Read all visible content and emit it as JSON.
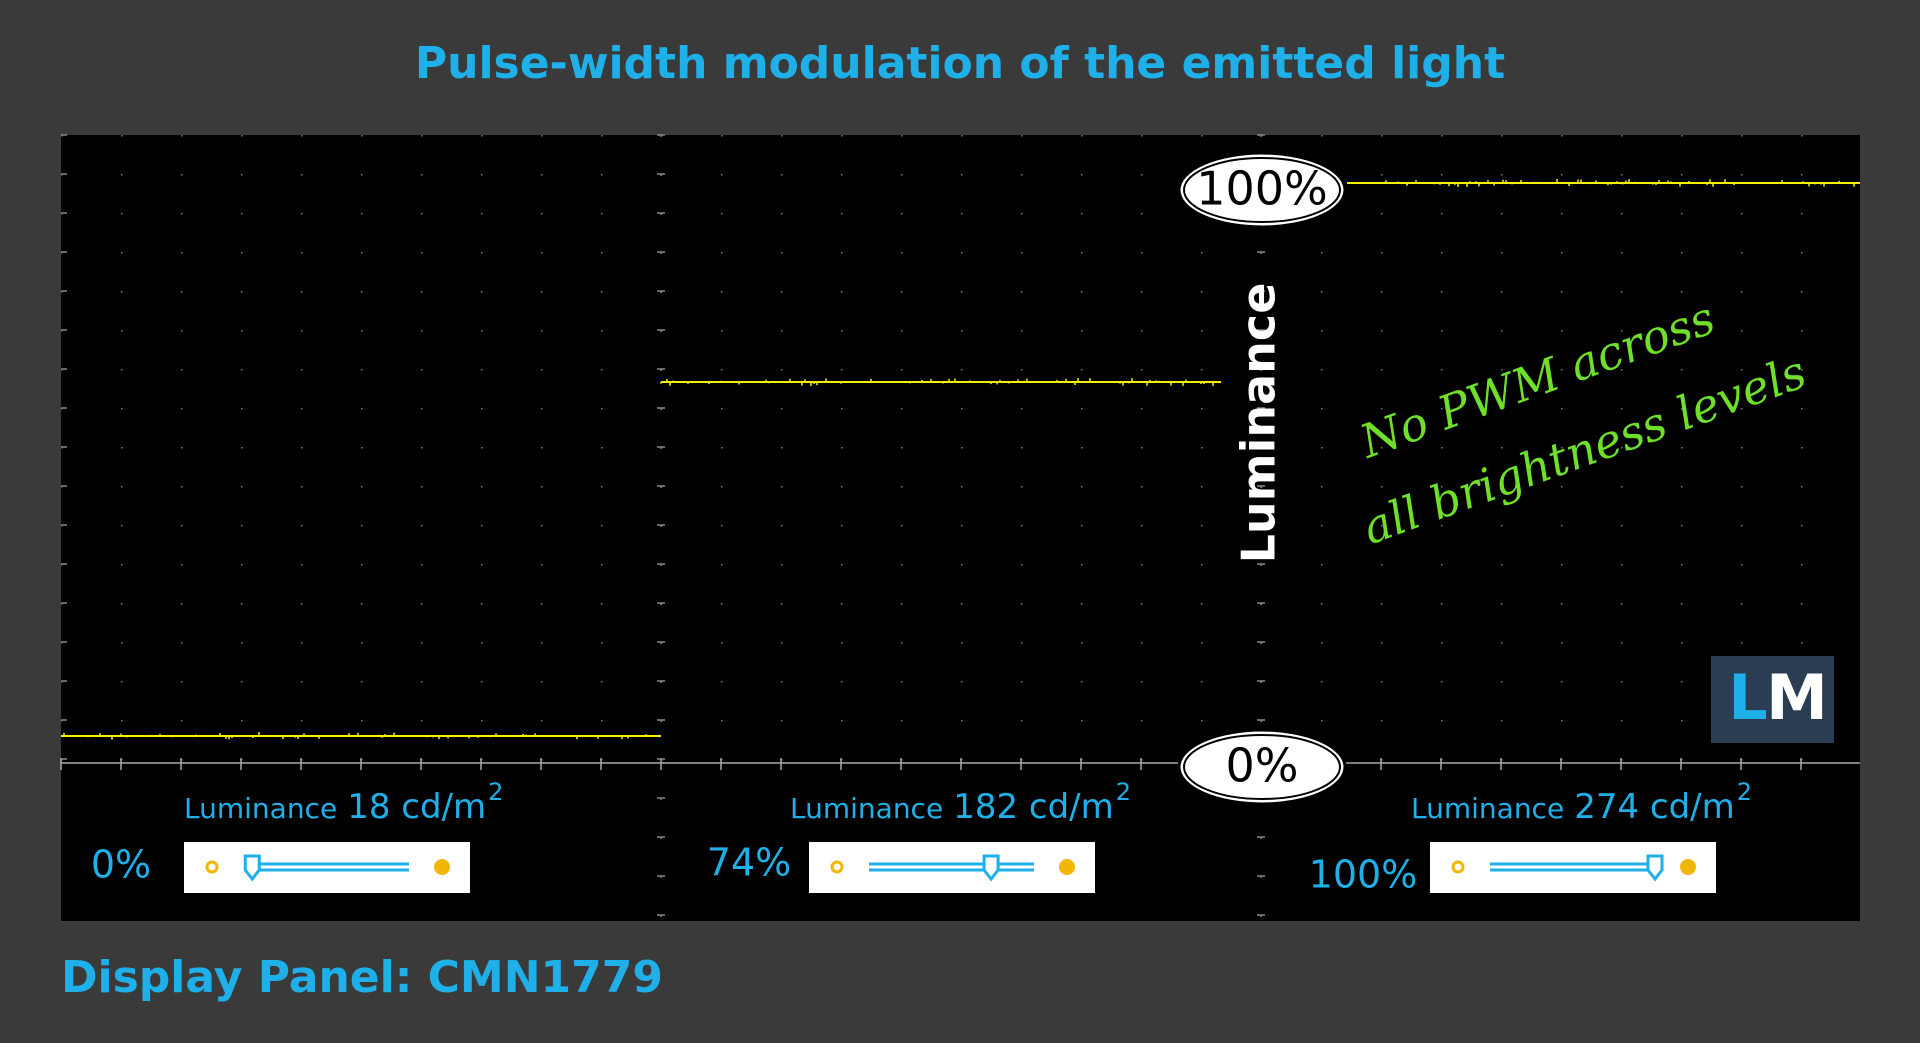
{
  "header": {
    "title": "Pulse-width modulation of the emitted light"
  },
  "plot": {
    "axis_label": "Luminance",
    "top_marker": "100%",
    "bottom_marker": "0%",
    "annotation": [
      "No PWM across",
      "all brightness levels"
    ],
    "logo": [
      "L",
      "M"
    ]
  },
  "panels": [
    {
      "brightness": "0%",
      "label": "Luminance",
      "value": "18 cd/m",
      "exponent": "2"
    },
    {
      "brightness": "74%",
      "label": "Luminance",
      "value": "182 cd/m",
      "exponent": "2"
    },
    {
      "brightness": "100%",
      "label": "Luminance",
      "value": "274 cd/m",
      "exponent": "2"
    }
  ],
  "footer": {
    "text": "Display Panel: CMN1779"
  }
}
